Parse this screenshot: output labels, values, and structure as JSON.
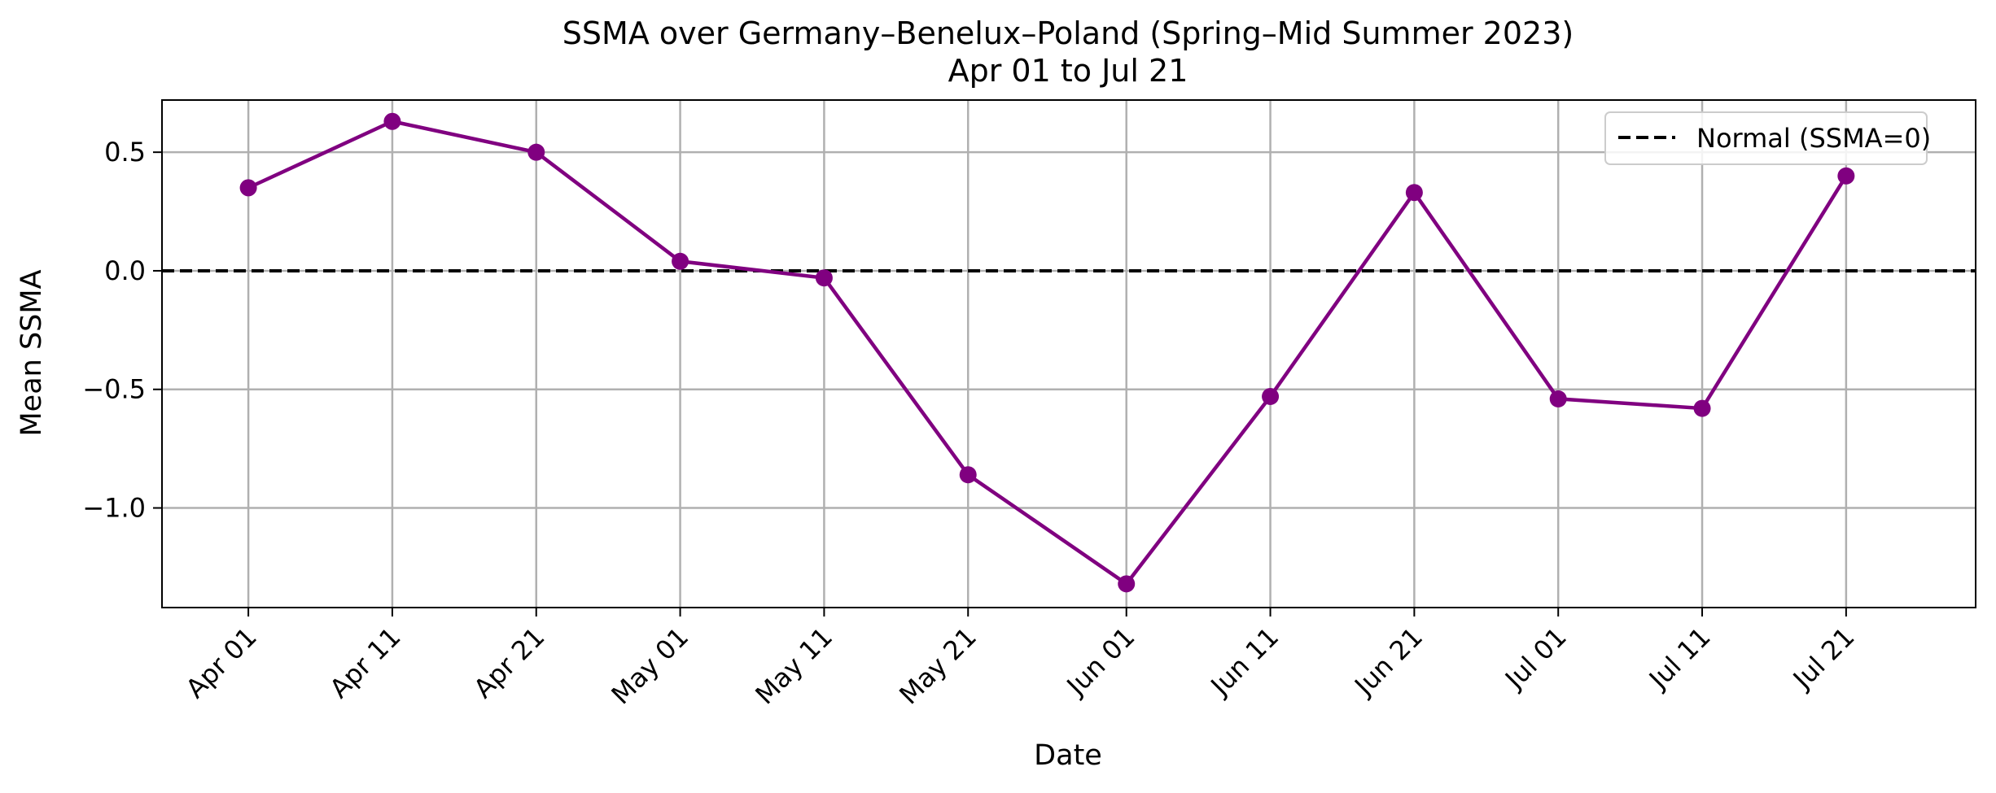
{
  "chart_data": {
    "type": "line",
    "title": "SSMA over Germany–Benelux–Poland (Spring–Mid Summer 2023)",
    "subtitle": "Apr 01 to Jul 21",
    "xlabel": "Date",
    "ylabel": "Mean SSMA",
    "x": [
      "Apr 01",
      "Apr 11",
      "Apr 21",
      "May 01",
      "May 11",
      "May 21",
      "Jun 01",
      "Jun 11",
      "Jun 21",
      "Jul 01",
      "Jul 11",
      "Jul 21"
    ],
    "x_dates": [
      "2023-04-01",
      "2023-04-11",
      "2023-04-21",
      "2023-05-01",
      "2023-05-11",
      "2023-05-21",
      "2023-06-01",
      "2023-06-11",
      "2023-06-21",
      "2023-07-01",
      "2023-07-11",
      "2023-07-21"
    ],
    "xlim": [
      "2023-03-26",
      "2023-07-30"
    ],
    "series": [
      {
        "values": [
          0.35,
          0.63,
          0.5,
          0.04,
          -0.03,
          -0.86,
          -1.32,
          -0.53,
          0.33,
          -0.54,
          -0.58,
          0.4
        ],
        "color": "#800080",
        "marker": "circle"
      }
    ],
    "reference_line": {
      "y": 0,
      "label": "Normal (SSMA=0)",
      "style": "dashed",
      "color": "#000000"
    },
    "yticks": [
      0.5,
      0.0,
      -0.5,
      -1.0
    ],
    "ytick_labels": [
      "0.5",
      "0.0",
      "−0.5",
      "−1.0"
    ],
    "ylim": [
      -1.42,
      0.72
    ],
    "grid": true,
    "legend_position": "top-right"
  }
}
